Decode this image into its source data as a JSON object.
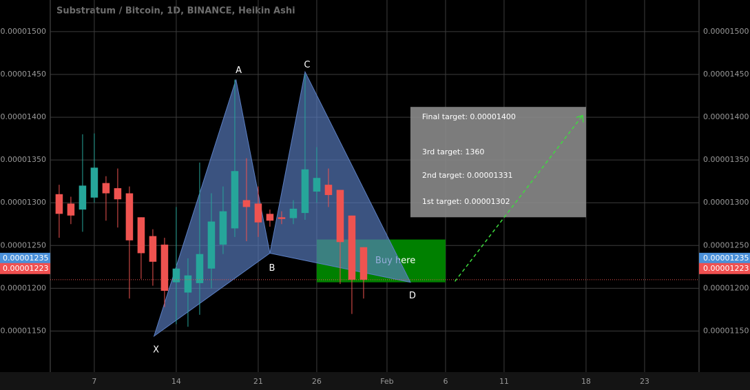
{
  "chart_data": {
    "type": "candlestick",
    "title": "Substratum / Bitcoin, 1D, BINANCE, Heikin Ashi",
    "x": [
      4,
      5,
      6,
      7,
      8,
      9,
      10,
      11,
      12,
      13,
      14,
      15,
      16,
      17,
      18,
      19,
      20,
      21,
      22,
      23,
      24,
      25,
      26,
      27,
      28,
      29,
      30
    ],
    "open": [
      1.31e-05,
      1.299e-05,
      1.292e-05,
      1.306e-05,
      1.323e-05,
      1.317e-05,
      1.311e-05,
      1.283e-05,
      1.261e-05,
      1.251e-05,
      1.207e-05,
      1.195e-05,
      1.206e-05,
      1.223e-05,
      1.251e-05,
      1.27e-05,
      1.303e-05,
      1.299e-05,
      1.287e-05,
      1.283e-05,
      1.282e-05,
      1.288e-05,
      1.313e-05,
      1.321e-05,
      1.315e-05,
      1.285e-05,
      1.248e-05
    ],
    "high": [
      1.321e-05,
      1.307e-05,
      1.38e-05,
      1.381e-05,
      1.331e-05,
      1.34e-05,
      1.319e-05,
      1.283e-05,
      1.269e-05,
      1.259e-05,
      1.295e-05,
      1.235e-05,
      1.347e-05,
      1.311e-05,
      1.319e-05,
      1.444e-05,
      1.352e-05,
      1.319e-05,
      1.292e-05,
      1.29e-05,
      1.303e-05,
      1.45e-05,
      1.365e-05,
      1.34e-05,
      1.315e-05,
      1.285e-05,
      1.248e-05
    ],
    "low": [
      1.259e-05,
      1.275e-05,
      1.266e-05,
      1.3e-05,
      1.279e-05,
      1.271e-05,
      1.188e-05,
      1.211e-05,
      1.203e-05,
      1.178e-05,
      1.158e-05,
      1.155e-05,
      1.169e-05,
      1.2e-05,
      1.24e-05,
      1.26e-05,
      1.255e-05,
      1.26e-05,
      1.272e-05,
      1.275e-05,
      1.275e-05,
      1.28e-05,
      1.3e-05,
      1.295e-05,
      1.205e-05,
      1.17e-05,
      1.188e-05
    ],
    "close": [
      1.287e-05,
      1.285e-05,
      1.32e-05,
      1.341e-05,
      1.311e-05,
      1.304e-05,
      1.256e-05,
      1.241e-05,
      1.231e-05,
      1.197e-05,
      1.223e-05,
      1.215e-05,
      1.24e-05,
      1.278e-05,
      1.29e-05,
      1.337e-05,
      1.295e-05,
      1.277e-05,
      1.279e-05,
      1.281e-05,
      1.293e-05,
      1.339e-05,
      1.329e-05,
      1.309e-05,
      1.254e-05,
      1.21e-05,
      1.21e-05
    ],
    "up_color": "#26a69a",
    "down_color": "#ef5350",
    "xlim": [
      3.24,
      58.65
    ],
    "ylim": [
      1.102e-05,
      1.537e-05
    ],
    "xticks": [
      7,
      14,
      21,
      26,
      {
        "value": 32,
        "label": "Feb"
      },
      {
        "value": 37,
        "label": "6"
      },
      {
        "value": 42,
        "label": "11"
      },
      {
        "value": 49,
        "label": "18"
      },
      {
        "value": 54,
        "label": "23"
      }
    ],
    "yticks": [
      {
        "value": 1.15e-05,
        "label": "0.00001150"
      },
      {
        "value": 1.2e-05,
        "label": "0.00001200"
      },
      {
        "value": 1.25e-05,
        "label": "0.00001250"
      },
      {
        "value": 1.3e-05,
        "label": "0.00001300"
      },
      {
        "value": 1.35e-05,
        "label": "0.00001350"
      },
      {
        "value": 1.4e-05,
        "label": "0.00001400"
      },
      {
        "value": 1.45e-05,
        "label": "0.00001450"
      },
      {
        "value": 1.5e-05,
        "label": "0.00001500"
      }
    ],
    "grid": true,
    "price_lines": [
      {
        "value": 1.235e-05,
        "label": "0.00001235",
        "color": "#4a90d9"
      },
      {
        "value": 1.223e-05,
        "label": "0.00001223",
        "color": "#f05050"
      }
    ],
    "pattern": {
      "color": "#5b7fc4",
      "points": [
        {
          "label": "X",
          "x": 12.1,
          "y": 1.144e-05
        },
        {
          "label": "A",
          "x": 19.1,
          "y": 1.444e-05
        },
        {
          "label": "B",
          "x": 22,
          "y": 1.241e-05
        },
        {
          "label": "C",
          "x": 25,
          "y": 1.453e-05
        },
        {
          "label": "D",
          "x": 34,
          "y": 1.207e-05
        }
      ]
    },
    "buy_box": {
      "label": "Buy here",
      "color": "#008000",
      "xlim": [
        26,
        37
      ],
      "ylim": [
        1.207e-05,
        1.257e-05
      ]
    },
    "target_box": {
      "lines": [
        "Final target: 0.00001400",
        "3rd target: 1360",
        "2nd target: 0.00001331",
        "1st target: 0.00001302"
      ],
      "xlim": [
        34,
        49
      ],
      "ylim": [
        1.283e-05,
        1.412e-05
      ]
    },
    "projection": {
      "color": "#3ddc3d",
      "x": [
        37.8,
        48.7
      ],
      "y": [
        1.208e-05,
        1.402e-05
      ]
    }
  }
}
